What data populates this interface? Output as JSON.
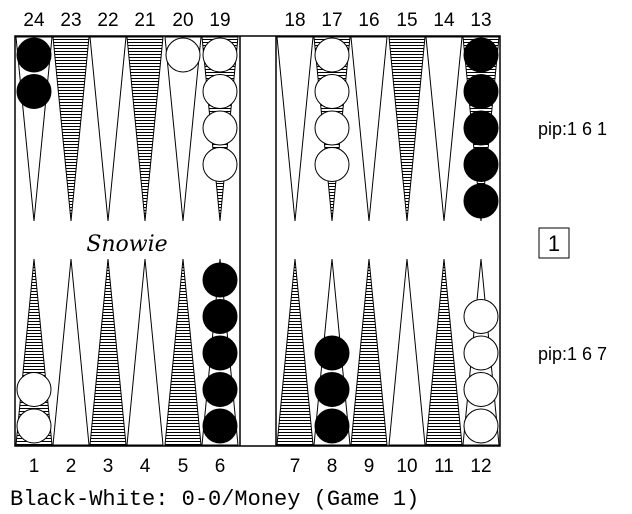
{
  "board": {
    "top_labels": [
      "24",
      "23",
      "22",
      "21",
      "20",
      "19",
      "18",
      "17",
      "16",
      "15",
      "14",
      "13"
    ],
    "bottom_labels": [
      "1",
      "2",
      "3",
      "4",
      "5",
      "6",
      "7",
      "8",
      "9",
      "10",
      "11",
      "12"
    ],
    "logo_text": "Snowie",
    "caption": "Black-White: 0-0/Money (Game 1)",
    "colors": {
      "black_checker": "#000000",
      "white_checker": "#ffffff",
      "line": "#000000",
      "background": "#ffffff"
    },
    "checkers": {
      "24": {
        "color": "black",
        "count": 2
      },
      "20": {
        "color": "white",
        "count": 1
      },
      "19": {
        "color": "white",
        "count": 4
      },
      "17": {
        "color": "white",
        "count": 4
      },
      "13": {
        "color": "black",
        "count": 5
      },
      "1": {
        "color": "white",
        "count": 2
      },
      "6": {
        "color": "black",
        "count": 5
      },
      "8": {
        "color": "black",
        "count": 3
      },
      "12": {
        "color": "white",
        "count": 4
      }
    }
  },
  "side_panel": {
    "pip_top": "pip:1 6 1",
    "pip_bottom": "pip:1 6 7",
    "cube_value": "1"
  }
}
